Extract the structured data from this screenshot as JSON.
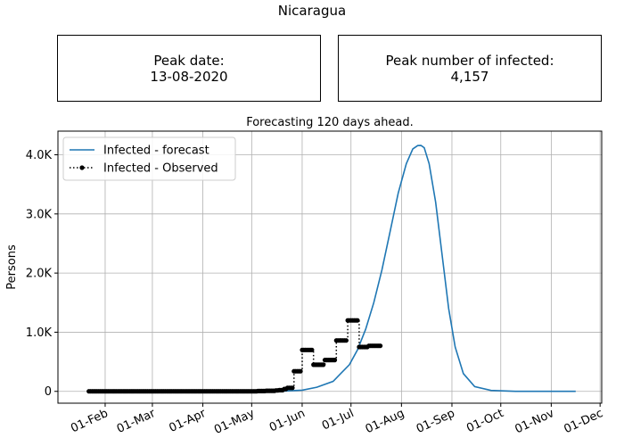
{
  "page": {
    "title": "Nicaragua"
  },
  "cards": {
    "peak_date": {
      "label": "Peak date:",
      "value": "13-08-2020"
    },
    "peak_infected": {
      "label": "Peak number of infected:",
      "value": "4,157"
    }
  },
  "chart_data": {
    "type": "line",
    "title": "Forecasting 120 days ahead.",
    "xlabel": "",
    "ylabel": "Persons",
    "xlim": [
      "2020-01-03",
      "2020-12-02"
    ],
    "ylim": [
      -200,
      4400
    ],
    "x_ticks": [
      "2020-02-01",
      "2020-03-01",
      "2020-04-01",
      "2020-05-01",
      "2020-06-01",
      "2020-07-01",
      "2020-08-01",
      "2020-09-01",
      "2020-10-01",
      "2020-11-01",
      "2020-12-01"
    ],
    "x_tick_labels": [
      "01-Feb",
      "01-Mar",
      "01-Apr",
      "01-May",
      "01-Jun",
      "01-Jul",
      "01-Aug",
      "01-Sep",
      "01-Oct",
      "01-Nov",
      "01-Dec"
    ],
    "y_ticks": [
      0,
      1000,
      2000,
      3000,
      4000
    ],
    "y_tick_labels": [
      "0",
      "1.0K",
      "2.0K",
      "3.0K",
      "4.0K"
    ],
    "grid": true,
    "legend": {
      "position": "top-left"
    },
    "series": [
      {
        "name": "Infected - forecast",
        "color": "#1f77b4",
        "style": "solid",
        "x": [
          "2020-05-20",
          "2020-06-01",
          "2020-06-10",
          "2020-06-20",
          "2020-06-30",
          "2020-07-05",
          "2020-07-10",
          "2020-07-15",
          "2020-07-20",
          "2020-07-25",
          "2020-07-30",
          "2020-08-04",
          "2020-08-08",
          "2020-08-11",
          "2020-08-13",
          "2020-08-15",
          "2020-08-18",
          "2020-08-22",
          "2020-08-26",
          "2020-08-30",
          "2020-09-03",
          "2020-09-08",
          "2020-09-15",
          "2020-09-25",
          "2020-10-10",
          "2020-11-01",
          "2020-11-16"
        ],
        "y": [
          5,
          20,
          70,
          170,
          450,
          700,
          1050,
          1500,
          2050,
          2700,
          3350,
          3850,
          4100,
          4155,
          4157,
          4120,
          3850,
          3200,
          2300,
          1400,
          750,
          300,
          80,
          15,
          0,
          0,
          0
        ]
      },
      {
        "name": "Infected - Observed",
        "color": "#000000",
        "style": "dotted",
        "x": [
          "2020-01-22",
          "2020-02-01",
          "2020-02-15",
          "2020-03-01",
          "2020-03-15",
          "2020-03-31",
          "2020-04-10",
          "2020-04-25",
          "2020-05-05",
          "2020-05-10",
          "2020-05-16",
          "2020-05-18",
          "2020-05-21",
          "2020-05-23",
          "2020-05-25",
          "2020-05-27",
          "2020-05-28",
          "2020-05-30",
          "2020-06-01",
          "2020-06-03",
          "2020-06-04",
          "2020-06-06",
          "2020-06-08",
          "2020-06-10",
          "2020-06-11",
          "2020-06-13",
          "2020-06-15",
          "2020-06-17",
          "2020-06-18",
          "2020-06-20",
          "2020-06-22",
          "2020-06-24",
          "2020-06-25",
          "2020-06-27",
          "2020-06-29",
          "2020-07-01",
          "2020-07-02",
          "2020-07-04",
          "2020-07-06",
          "2020-07-08",
          "2020-07-10",
          "2020-07-12",
          "2020-07-14",
          "2020-07-16",
          "2020-07-18",
          "2020-07-19"
        ],
        "y": [
          0,
          0,
          0,
          0,
          0,
          0,
          0,
          0,
          5,
          10,
          15,
          20,
          40,
          60,
          60,
          340,
          340,
          340,
          700,
          700,
          700,
          700,
          450,
          450,
          450,
          450,
          530,
          530,
          530,
          530,
          860,
          860,
          860,
          860,
          1200,
          1200,
          1200,
          1200,
          750,
          750,
          750,
          770,
          770,
          770,
          770,
          770
        ]
      }
    ]
  }
}
